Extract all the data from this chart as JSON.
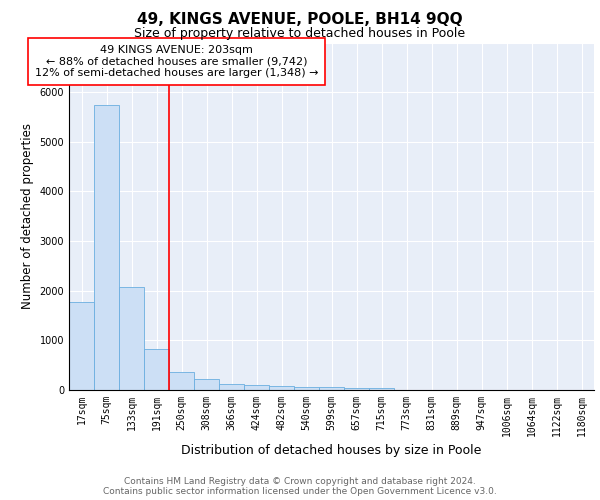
{
  "title": "49, KINGS AVENUE, POOLE, BH14 9QQ",
  "subtitle": "Size of property relative to detached houses in Poole",
  "xlabel": "Distribution of detached houses by size in Poole",
  "ylabel": "Number of detached properties",
  "categories": [
    "17sqm",
    "75sqm",
    "133sqm",
    "191sqm",
    "250sqm",
    "308sqm",
    "366sqm",
    "424sqm",
    "482sqm",
    "540sqm",
    "599sqm",
    "657sqm",
    "715sqm",
    "773sqm",
    "831sqm",
    "889sqm",
    "947sqm",
    "1006sqm",
    "1064sqm",
    "1122sqm",
    "1180sqm"
  ],
  "values": [
    1780,
    5750,
    2080,
    820,
    370,
    230,
    130,
    100,
    80,
    60,
    55,
    50,
    45,
    5,
    5,
    5,
    5,
    5,
    5,
    5,
    5
  ],
  "bar_color": "#ccdff5",
  "bar_edge_color": "#6aaee0",
  "vline_x_index": 3.5,
  "vline_color": "red",
  "annotation_line1": "49 KINGS AVENUE: 203sqm",
  "annotation_line2": "← 88% of detached houses are smaller (9,742)",
  "annotation_line3": "12% of semi-detached houses are larger (1,348) →",
  "annotation_box_color": "white",
  "annotation_box_edge_color": "red",
  "ylim": [
    0,
    7000
  ],
  "footer_text": "Contains HM Land Registry data © Crown copyright and database right 2024.\nContains public sector information licensed under the Open Government Licence v3.0.",
  "background_color": "#e8eef8",
  "grid_color": "#ffffff",
  "title_fontsize": 11,
  "subtitle_fontsize": 9,
  "ylabel_fontsize": 8.5,
  "xlabel_fontsize": 9,
  "tick_fontsize": 7,
  "annotation_fontsize": 8,
  "footer_fontsize": 6.5
}
